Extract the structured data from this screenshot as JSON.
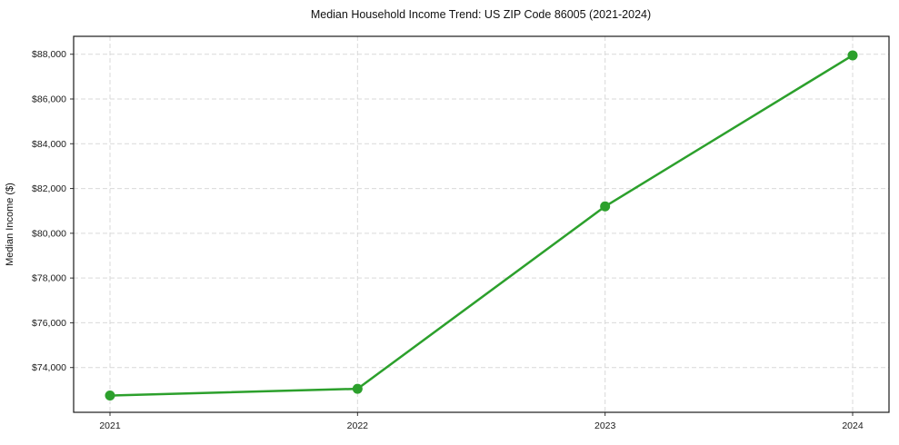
{
  "chart_data": {
    "type": "line",
    "title": "Median Household Income Trend: US ZIP Code 86005 (2021-2024)",
    "xlabel": "",
    "ylabel": "Median Income ($)",
    "x": [
      2021,
      2022,
      2023,
      2024
    ],
    "xtick_labels": [
      "2021",
      "2022",
      "2023",
      "2024"
    ],
    "series": [
      {
        "name": "Median Income",
        "values": [
          72750,
          73050,
          81200,
          87950
        ],
        "color": "#2ca02c"
      }
    ],
    "ylim": [
      72000,
      88800
    ],
    "yticks": [
      74000,
      76000,
      78000,
      80000,
      82000,
      84000,
      86000,
      88000
    ],
    "ytick_labels": [
      "$74,000",
      "$76,000",
      "$78,000",
      "$80,000",
      "$82,000",
      "$84,000",
      "$86,000",
      "$88,000"
    ],
    "grid": true,
    "grid_style": "dashed",
    "grid_color": "#d9d9d9",
    "legend": false,
    "background": "#ffffff",
    "text_color": "#111111"
  }
}
